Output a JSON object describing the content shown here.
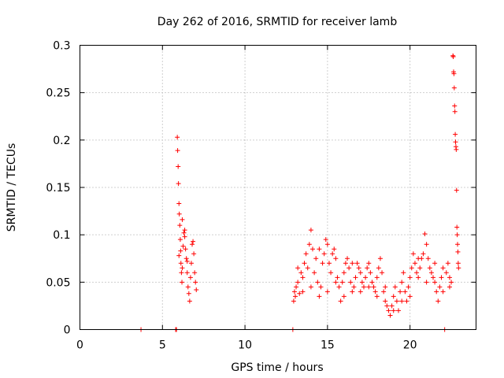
{
  "chart_data": {
    "type": "scatter",
    "title": "Day 262 of 2016, SRMTID for receiver lamb",
    "xlabel": "GPS time / hours",
    "ylabel": "SRMTID / TECUs",
    "xlim": [
      0,
      24
    ],
    "ylim": [
      0,
      0.3
    ],
    "x_ticks": [
      0,
      5,
      10,
      15,
      20
    ],
    "y_ticks": [
      0,
      0.05,
      0.1,
      0.15,
      0.2,
      0.25,
      0.3
    ],
    "x_tick_labels": [
      "0",
      "5",
      "10",
      "15",
      "20"
    ],
    "y_tick_labels": [
      "0",
      "0.05",
      "0.1",
      "0.15",
      "0.2",
      "0.25",
      "0.3"
    ],
    "grid": true,
    "marker": "+",
    "series": [
      {
        "name": "SRMTID",
        "color": "#ff0000",
        "points": [
          [
            3.7,
            0.0
          ],
          [
            5.8,
            0.0
          ],
          [
            5.85,
            0.0
          ],
          [
            5.9,
            0.203
          ],
          [
            5.92,
            0.189
          ],
          [
            5.95,
            0.172
          ],
          [
            5.97,
            0.154
          ],
          [
            6.0,
            0.133
          ],
          [
            6.02,
            0.122
          ],
          [
            6.05,
            0.11
          ],
          [
            6.08,
            0.095
          ],
          [
            6.1,
            0.083
          ],
          [
            6.12,
            0.07
          ],
          [
            6.15,
            0.06
          ],
          [
            6.18,
            0.05
          ],
          [
            6.2,
            0.065
          ],
          [
            6.25,
            0.088
          ],
          [
            6.3,
            0.102
          ],
          [
            6.35,
            0.098
          ],
          [
            6.4,
            0.085
          ],
          [
            6.45,
            0.075
          ],
          [
            6.5,
            0.06
          ],
          [
            6.55,
            0.045
          ],
          [
            6.6,
            0.038
          ],
          [
            6.65,
            0.03
          ],
          [
            6.7,
            0.055
          ],
          [
            6.75,
            0.07
          ],
          [
            6.8,
            0.09
          ],
          [
            6.85,
            0.093
          ],
          [
            6.9,
            0.08
          ],
          [
            6.95,
            0.06
          ],
          [
            7.0,
            0.05
          ],
          [
            7.05,
            0.042
          ],
          [
            6.0,
            0.078
          ],
          [
            6.2,
            0.116
          ],
          [
            6.35,
            0.105
          ],
          [
            6.5,
            0.072
          ],
          [
            12.9,
            0.0
          ],
          [
            22.1,
            0.0
          ],
          [
            12.95,
            0.03
          ],
          [
            13.0,
            0.04
          ],
          [
            13.05,
            0.035
          ],
          [
            13.1,
            0.045
          ],
          [
            13.2,
            0.05
          ],
          [
            13.3,
            0.038
          ],
          [
            13.4,
            0.06
          ],
          [
            13.5,
            0.055
          ],
          [
            13.6,
            0.07
          ],
          [
            13.7,
            0.08
          ],
          [
            13.8,
            0.065
          ],
          [
            13.9,
            0.09
          ],
          [
            14.0,
            0.105
          ],
          [
            14.1,
            0.085
          ],
          [
            14.2,
            0.06
          ],
          [
            14.3,
            0.075
          ],
          [
            14.4,
            0.05
          ],
          [
            14.5,
            0.035
          ],
          [
            14.6,
            0.045
          ],
          [
            14.7,
            0.07
          ],
          [
            14.8,
            0.08
          ],
          [
            14.9,
            0.095
          ],
          [
            15.0,
            0.09
          ],
          [
            15.1,
            0.07
          ],
          [
            15.2,
            0.06
          ],
          [
            15.3,
            0.08
          ],
          [
            15.4,
            0.085
          ],
          [
            15.5,
            0.075
          ],
          [
            15.6,
            0.055
          ],
          [
            15.7,
            0.045
          ],
          [
            15.8,
            0.03
          ],
          [
            15.9,
            0.05
          ],
          [
            16.0,
            0.06
          ],
          [
            16.1,
            0.07
          ],
          [
            16.2,
            0.075
          ],
          [
            16.3,
            0.065
          ],
          [
            16.4,
            0.05
          ],
          [
            16.5,
            0.04
          ],
          [
            16.6,
            0.045
          ],
          [
            16.7,
            0.055
          ],
          [
            16.8,
            0.07
          ],
          [
            16.9,
            0.065
          ],
          [
            17.0,
            0.06
          ],
          [
            17.1,
            0.05
          ],
          [
            17.2,
            0.045
          ],
          [
            17.3,
            0.055
          ],
          [
            17.4,
            0.065
          ],
          [
            17.5,
            0.07
          ],
          [
            17.6,
            0.06
          ],
          [
            17.7,
            0.05
          ],
          [
            17.8,
            0.045
          ],
          [
            17.9,
            0.04
          ],
          [
            18.0,
            0.055
          ],
          [
            18.1,
            0.065
          ],
          [
            18.2,
            0.075
          ],
          [
            18.3,
            0.06
          ],
          [
            18.4,
            0.04
          ],
          [
            18.5,
            0.03
          ],
          [
            18.6,
            0.025
          ],
          [
            18.7,
            0.02
          ],
          [
            18.8,
            0.015
          ],
          [
            18.9,
            0.025
          ],
          [
            19.0,
            0.035
          ],
          [
            19.1,
            0.045
          ],
          [
            19.2,
            0.03
          ],
          [
            19.3,
            0.02
          ],
          [
            19.4,
            0.04
          ],
          [
            19.5,
            0.05
          ],
          [
            19.6,
            0.06
          ],
          [
            19.7,
            0.04
          ],
          [
            19.8,
            0.03
          ],
          [
            19.9,
            0.045
          ],
          [
            20.0,
            0.055
          ],
          [
            20.1,
            0.065
          ],
          [
            20.2,
            0.08
          ],
          [
            20.3,
            0.07
          ],
          [
            20.4,
            0.06
          ],
          [
            20.5,
            0.055
          ],
          [
            20.6,
            0.065
          ],
          [
            20.7,
            0.075
          ],
          [
            20.8,
            0.08
          ],
          [
            20.9,
            0.101
          ],
          [
            21.0,
            0.09
          ],
          [
            21.1,
            0.075
          ],
          [
            21.2,
            0.065
          ],
          [
            21.3,
            0.06
          ],
          [
            21.4,
            0.055
          ],
          [
            21.5,
            0.05
          ],
          [
            21.6,
            0.04
          ],
          [
            21.7,
            0.03
          ],
          [
            21.8,
            0.045
          ],
          [
            21.9,
            0.055
          ],
          [
            22.0,
            0.065
          ],
          [
            22.2,
            0.06
          ],
          [
            22.3,
            0.07
          ],
          [
            22.4,
            0.055
          ],
          [
            22.5,
            0.05
          ],
          [
            22.6,
            0.289
          ],
          [
            22.62,
            0.288
          ],
          [
            22.64,
            0.272
          ],
          [
            22.66,
            0.27
          ],
          [
            22.68,
            0.255
          ],
          [
            22.7,
            0.236
          ],
          [
            22.72,
            0.23
          ],
          [
            22.74,
            0.206
          ],
          [
            22.76,
            0.198
          ],
          [
            22.78,
            0.193
          ],
          [
            22.8,
            0.19
          ],
          [
            22.82,
            0.147
          ],
          [
            22.84,
            0.108
          ],
          [
            22.86,
            0.1
          ],
          [
            22.88,
            0.09
          ],
          [
            22.9,
            0.082
          ],
          [
            22.92,
            0.07
          ],
          [
            22.94,
            0.065
          ],
          [
            13.2,
            0.065
          ],
          [
            13.5,
            0.04
          ],
          [
            14.0,
            0.045
          ],
          [
            14.5,
            0.085
          ],
          [
            15.0,
            0.04
          ],
          [
            15.5,
            0.05
          ],
          [
            16.0,
            0.035
          ],
          [
            16.5,
            0.07
          ],
          [
            17.0,
            0.04
          ],
          [
            17.5,
            0.045
          ],
          [
            18.0,
            0.035
          ],
          [
            18.5,
            0.045
          ],
          [
            19.0,
            0.02
          ],
          [
            19.5,
            0.03
          ],
          [
            20.0,
            0.035
          ],
          [
            20.5,
            0.075
          ],
          [
            21.0,
            0.05
          ],
          [
            21.5,
            0.07
          ],
          [
            22.0,
            0.04
          ],
          [
            22.4,
            0.045
          ]
        ]
      }
    ]
  }
}
